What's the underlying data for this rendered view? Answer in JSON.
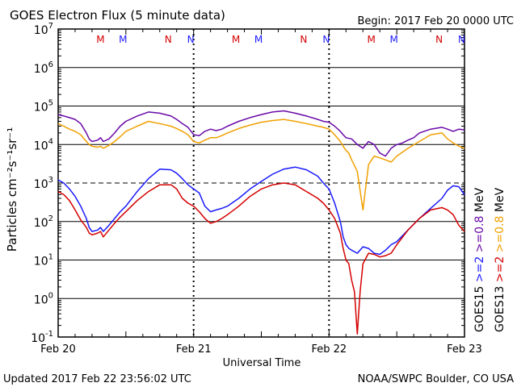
{
  "header": {
    "title": "GOES Electron Flux (5 minute data)",
    "begin": "Begin: 2017 Feb 20 0000 UTC"
  },
  "footer": {
    "updated": "Updated 2017 Feb 22 23:56:02 UTC",
    "credit": "NOAA/SWPC Boulder, CO USA"
  },
  "chart_data": {
    "type": "line",
    "xlabel": "Universal Time",
    "ylabel": "Particles cm⁻²s⁻¹sr⁻¹",
    "yscale": "log",
    "ylim": [
      0.1,
      10000000
    ],
    "xlim_hours": [
      0,
      72
    ],
    "x_tick_labels": [
      "Feb 20",
      "Feb 21",
      "Feb 22",
      "Feb 23"
    ],
    "y_tick_exponents": [
      "-1",
      "0",
      "1",
      "2",
      "3",
      "4",
      "5",
      "6",
      "7"
    ],
    "threshold_line": 1000,
    "grid": true,
    "daynight_markers": [
      {
        "label": "M",
        "x": 7.5,
        "color": "#d40000"
      },
      {
        "label": "M",
        "x": 11.5,
        "color": "#1a1aff"
      },
      {
        "label": "N",
        "x": 19.5,
        "color": "#d40000"
      },
      {
        "label": "N",
        "x": 23.5,
        "color": "#1a1aff"
      },
      {
        "label": "M",
        "x": 31.5,
        "color": "#d40000"
      },
      {
        "label": "M",
        "x": 35.5,
        "color": "#1a1aff"
      },
      {
        "label": "N",
        "x": 43.5,
        "color": "#d40000"
      },
      {
        "label": "N",
        "x": 47.5,
        "color": "#1a1aff"
      },
      {
        "label": "M",
        "x": 55.5,
        "color": "#d40000"
      },
      {
        "label": "M",
        "x": 59.5,
        "color": "#1a1aff"
      },
      {
        "label": "N",
        "x": 67.5,
        "color": "#d40000"
      },
      {
        "label": "N",
        "x": 71.5,
        "color": "#1a1aff"
      }
    ],
    "legend": [
      {
        "group": "GOES15",
        "items": [
          {
            "label": "GOES15",
            "color": "#000000"
          },
          {
            "label": ">=2",
            "color": "#1a1aff"
          },
          {
            "label": ">=0.8",
            "color": "#6a0aa8"
          },
          {
            "label": "MeV",
            "color": "#000000"
          }
        ]
      },
      {
        "group": "GOES13",
        "items": [
          {
            "label": "GOES13",
            "color": "#000000"
          },
          {
            "label": ">=2",
            "color": "#d40000"
          },
          {
            "label": ">=0.8",
            "color": "#f0a000"
          },
          {
            "label": "MeV",
            "color": "#000000"
          }
        ]
      }
    ],
    "series": [
      {
        "name": "GOES15 >=0.8 MeV",
        "color": "#6a0aa8",
        "x": [
          0,
          1,
          2,
          3,
          4,
          5,
          5.5,
          6,
          7,
          7.5,
          8,
          9,
          10,
          11,
          12,
          14,
          16,
          18,
          20,
          21,
          22,
          23,
          24,
          25,
          26,
          27,
          28,
          29,
          30,
          32,
          34,
          36,
          38,
          40,
          42,
          44,
          46,
          47,
          48,
          49,
          50,
          50.5,
          51,
          52,
          53,
          54,
          55,
          56,
          57,
          58,
          59,
          60,
          61,
          62,
          63,
          64,
          66,
          68,
          69,
          70,
          71,
          72
        ],
        "y": [
          60000,
          55000,
          50000,
          45000,
          35000,
          20000,
          14000,
          12000,
          13000,
          15000,
          12000,
          14000,
          20000,
          30000,
          40000,
          55000,
          70000,
          65000,
          55000,
          45000,
          35000,
          28000,
          18000,
          17000,
          22000,
          25000,
          23000,
          25000,
          30000,
          40000,
          50000,
          60000,
          70000,
          75000,
          65000,
          55000,
          45000,
          40000,
          38000,
          30000,
          22000,
          18000,
          15000,
          14000,
          10000,
          8000,
          12000,
          10000,
          6000,
          5000,
          8000,
          10000,
          11000,
          13000,
          15000,
          20000,
          25000,
          28000,
          25000,
          22000,
          25000,
          24000
        ]
      },
      {
        "name": "GOES13 >=0.8 MeV",
        "color": "#f0a000",
        "x": [
          0,
          1,
          2,
          3,
          4,
          5,
          5.5,
          6,
          7,
          7.5,
          8,
          9,
          10,
          11,
          12,
          14,
          16,
          18,
          20,
          21,
          22,
          23,
          24,
          25,
          26,
          27,
          28,
          29,
          30,
          32,
          34,
          36,
          38,
          40,
          42,
          44,
          46,
          47,
          48,
          49,
          50,
          50.5,
          51,
          51.5,
          52,
          53,
          54,
          55,
          56,
          57,
          58,
          59,
          60,
          62,
          64,
          66,
          68,
          69,
          70,
          71,
          72
        ],
        "y": [
          35000,
          30000,
          25000,
          22000,
          18000,
          12000,
          10000,
          9000,
          8500,
          9000,
          8000,
          9500,
          12000,
          16000,
          22000,
          30000,
          40000,
          35000,
          30000,
          26000,
          22000,
          18000,
          12000,
          11000,
          13000,
          15000,
          15000,
          17000,
          20000,
          26000,
          32000,
          38000,
          42000,
          45000,
          40000,
          35000,
          30000,
          28000,
          25000,
          18000,
          12000,
          9000,
          7000,
          6000,
          4000,
          2000,
          200,
          3000,
          5000,
          4500,
          4000,
          3500,
          5000,
          8000,
          12000,
          18000,
          20000,
          14000,
          11000,
          9000,
          8000
        ]
      },
      {
        "name": "GOES15 >=2 MeV",
        "color": "#1a1aff",
        "x": [
          0,
          1,
          2,
          3,
          4,
          5,
          5.5,
          6,
          7,
          7.5,
          8,
          9,
          10,
          11,
          12,
          14,
          16,
          18,
          20,
          21,
          22,
          23,
          24,
          25,
          26,
          27,
          28,
          29,
          30,
          32,
          34,
          36,
          38,
          40,
          42,
          44,
          46,
          47,
          48,
          49,
          50,
          50.5,
          51,
          51.5,
          52,
          53,
          54,
          55,
          56,
          57,
          58,
          59,
          60,
          62,
          64,
          66,
          68,
          69,
          70,
          71,
          72
        ],
        "y": [
          1200,
          1000,
          700,
          450,
          250,
          120,
          70,
          55,
          60,
          70,
          55,
          80,
          120,
          180,
          250,
          600,
          1300,
          2300,
          2200,
          1800,
          1300,
          900,
          700,
          550,
          250,
          180,
          200,
          220,
          250,
          400,
          700,
          1100,
          1700,
          2300,
          2600,
          2200,
          1500,
          1000,
          700,
          300,
          100,
          40,
          25,
          20,
          18,
          15,
          22,
          20,
          15,
          14,
          18,
          25,
          30,
          60,
          120,
          220,
          400,
          650,
          850,
          800,
          500
        ]
      },
      {
        "name": "GOES13 >=2 MeV",
        "color": "#d40000",
        "x": [
          0,
          1,
          2,
          3,
          4,
          5,
          5.5,
          6,
          7,
          7.5,
          8,
          9,
          10,
          11,
          12,
          14,
          16,
          18,
          20,
          21,
          22,
          23,
          24,
          25,
          26,
          27,
          28,
          29,
          30,
          32,
          34,
          36,
          38,
          40,
          42,
          44,
          46,
          47,
          48,
          49,
          50,
          50.5,
          51,
          51.5,
          52,
          52.5,
          53,
          53.5,
          54,
          55,
          56,
          57,
          58,
          59,
          60,
          62,
          64,
          66,
          68,
          69,
          70,
          71,
          72
        ],
        "y": [
          600,
          500,
          350,
          200,
          110,
          70,
          50,
          45,
          50,
          55,
          40,
          60,
          90,
          130,
          180,
          350,
          600,
          900,
          900,
          700,
          400,
          300,
          250,
          180,
          120,
          90,
          100,
          120,
          150,
          250,
          450,
          700,
          900,
          1000,
          900,
          600,
          400,
          300,
          200,
          120,
          50,
          20,
          10,
          8,
          3,
          1.5,
          0.12,
          1.5,
          8,
          15,
          14,
          12,
          13,
          15,
          25,
          60,
          120,
          200,
          230,
          200,
          150,
          80,
          55
        ]
      }
    ]
  }
}
